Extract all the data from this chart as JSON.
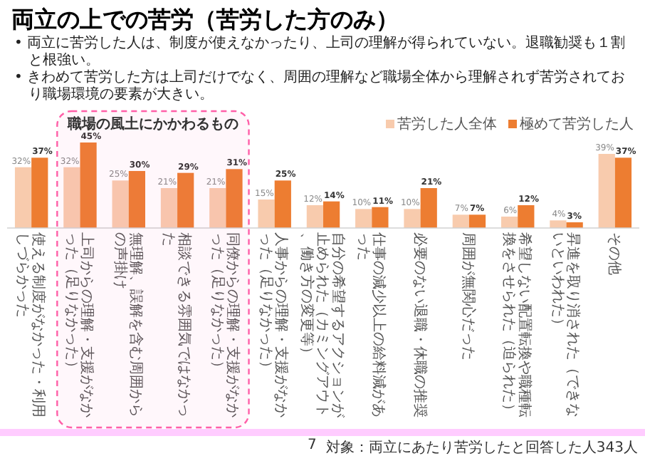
{
  "chart_data": {
    "type": "bar",
    "title": "両立の上での苦労（苦労した方のみ）",
    "annotations": [
      "• 両立に苦労した人は、制度が使えなかったり、上司の理解が得られていない。退職勧奨も１割と根強い。",
      "• きわめて苦労した方は上司だけでなく、周囲の理解など職場全体から理解されず苦労されており職場環境の要素が大きい。",
      "対象：両立にあたり苦労したと回答した人343人",
      "7"
    ],
    "categories": [
      "使える制度がなかった・利用しづらかった",
      "上司からの理解・支援がなかった（足りなかった）",
      "無理解、誤解を含む周囲からの声掛け",
      "相談できる雰囲気ではなかった",
      "同僚からの理解・支援がなかった（足りなかった）",
      "人事からの理解・支援がなかった（足りなかった）",
      "自分の希望するアクションが止められた（カミングアウト、働き方の変更等）",
      "仕事の減少以上の給料減があった",
      "必要のない退職・休職の推奨",
      "周囲が無関心だった",
      "希望しない配置転換や職種転換をさせられた（迫られた）",
      "昇進を取り消された（できないといわれた）",
      "その他"
    ],
    "series": [
      {
        "name": "苦労した人全体",
        "color": "#f8cbad",
        "values": [
          32,
          32,
          25,
          21,
          21,
          15,
          12,
          10,
          10,
          7,
          6,
          4,
          39
        ],
        "value_labels": [
          "32%",
          "32%",
          "25%",
          "21%",
          "21%",
          "15%",
          "12%",
          "10%",
          "10%",
          "7%",
          "6%",
          "4%",
          "39%"
        ]
      },
      {
        "name": "極めて苦労した人",
        "color": "#ed7d31",
        "values": [
          37,
          45,
          30,
          29,
          31,
          25,
          14,
          11,
          21,
          7,
          12,
          3,
          37
        ],
        "value_labels": [
          "37%",
          "45%",
          "30%",
          "29%",
          "31%",
          "25%",
          "14%",
          "11%",
          "21%",
          "7%",
          "12%",
          "3%",
          "37%"
        ]
      }
    ],
    "bands": [
      {
        "axis": "x",
        "from": "上司からの理解・支援がなかった（足りなかった）",
        "to": "同僚からの理解・支援がなかった（足りなかった）",
        "label": "職場の風土にかかわるもの",
        "color": "#ff5fa8"
      }
    ],
    "legend": "top right"
  }
}
